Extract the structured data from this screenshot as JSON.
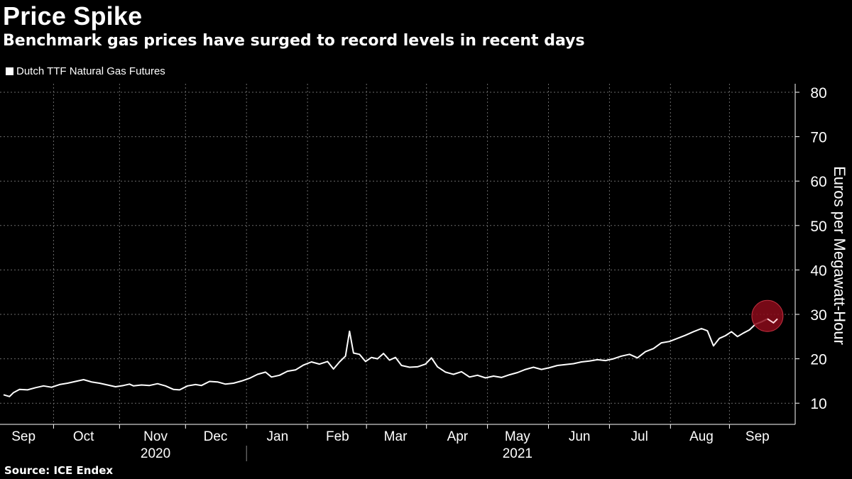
{
  "header": {
    "title": "Price Spike",
    "subtitle": "Benchmark gas prices have surged to record levels in recent days"
  },
  "legend": {
    "label": "Dutch TTF Natural Gas Futures"
  },
  "source": "Source: ICE Endex",
  "colors": {
    "background": "#000000",
    "line": "#ffffff",
    "grid": "#6b6b6b",
    "highlight": "#8b0a1a"
  },
  "chart_data": {
    "type": "line",
    "title": "Price Spike",
    "subtitle": "Benchmark gas prices have surged to record levels in recent days",
    "ylabel": "Euros per Megawatt-Hour",
    "ylim": [
      5,
      82
    ],
    "y_ticks": [
      10,
      20,
      30,
      40,
      50,
      60,
      70,
      80
    ],
    "x_range": [
      "2020-08-31",
      "2021-09-22"
    ],
    "x_month_labels": [
      {
        "label": "Sep",
        "date": "2020-09-10"
      },
      {
        "label": "Oct",
        "date": "2020-10-10"
      },
      {
        "label": "Nov",
        "date": "2020-11-15"
      },
      {
        "label": "Dec",
        "date": "2020-12-15"
      },
      {
        "label": "Jan",
        "date": "2021-01-15"
      },
      {
        "label": "Feb",
        "date": "2021-02-14"
      },
      {
        "label": "Mar",
        "date": "2021-03-15"
      },
      {
        "label": "Apr",
        "date": "2021-04-15"
      },
      {
        "label": "May",
        "date": "2021-05-15"
      },
      {
        "label": "Jun",
        "date": "2021-06-15"
      },
      {
        "label": "Jul",
        "date": "2021-07-15"
      },
      {
        "label": "Aug",
        "date": "2021-08-15"
      },
      {
        "label": "Sep",
        "date": "2021-09-12"
      }
    ],
    "x_year_labels": [
      {
        "label": "2020",
        "date": "2020-11-15"
      },
      {
        "label": "2021",
        "date": "2021-05-15"
      }
    ],
    "gridlines": true,
    "legend_position": "top-left",
    "series": [
      {
        "name": "Dutch TTF Natural Gas Futures",
        "points": [
          [
            "2020-08-31",
            11.9
          ],
          [
            "2020-09-03",
            11.5
          ],
          [
            "2020-09-05",
            12.4
          ],
          [
            "2020-09-08",
            13.1
          ],
          [
            "2020-09-12",
            13.0
          ],
          [
            "2020-09-16",
            13.5
          ],
          [
            "2020-09-20",
            13.9
          ],
          [
            "2020-09-24",
            13.6
          ],
          [
            "2020-09-28",
            14.2
          ],
          [
            "2020-10-02",
            14.5
          ],
          [
            "2020-10-06",
            14.9
          ],
          [
            "2020-10-10",
            15.3
          ],
          [
            "2020-10-14",
            14.8
          ],
          [
            "2020-10-18",
            14.5
          ],
          [
            "2020-10-22",
            14.1
          ],
          [
            "2020-10-26",
            13.7
          ],
          [
            "2020-10-30",
            14.0
          ],
          [
            "2020-11-02",
            14.3
          ],
          [
            "2020-11-04",
            13.9
          ],
          [
            "2020-11-08",
            14.1
          ],
          [
            "2020-11-12",
            14.0
          ],
          [
            "2020-11-16",
            14.4
          ],
          [
            "2020-11-20",
            13.9
          ],
          [
            "2020-11-24",
            13.1
          ],
          [
            "2020-11-27",
            13.0
          ],
          [
            "2020-12-01",
            13.9
          ],
          [
            "2020-12-05",
            14.2
          ],
          [
            "2020-12-08",
            14.0
          ],
          [
            "2020-12-12",
            14.9
          ],
          [
            "2020-12-16",
            14.8
          ],
          [
            "2020-12-20",
            14.3
          ],
          [
            "2020-12-24",
            14.5
          ],
          [
            "2020-12-28",
            15.0
          ],
          [
            "2021-01-01",
            15.6
          ],
          [
            "2021-01-05",
            16.5
          ],
          [
            "2021-01-09",
            17.0
          ],
          [
            "2021-01-12",
            15.9
          ],
          [
            "2021-01-16",
            16.3
          ],
          [
            "2021-01-20",
            17.2
          ],
          [
            "2021-01-24",
            17.5
          ],
          [
            "2021-01-28",
            18.6
          ],
          [
            "2021-02-01",
            19.3
          ],
          [
            "2021-02-05",
            18.8
          ],
          [
            "2021-02-09",
            19.4
          ],
          [
            "2021-02-12",
            17.7
          ],
          [
            "2021-02-15",
            19.3
          ],
          [
            "2021-02-18",
            20.6
          ],
          [
            "2021-02-20",
            26.2
          ],
          [
            "2021-02-22",
            21.3
          ],
          [
            "2021-02-25",
            21.0
          ],
          [
            "2021-02-28",
            19.4
          ],
          [
            "2021-03-03",
            20.3
          ],
          [
            "2021-03-06",
            20.0
          ],
          [
            "2021-03-09",
            21.2
          ],
          [
            "2021-03-12",
            19.7
          ],
          [
            "2021-03-15",
            20.3
          ],
          [
            "2021-03-18",
            18.5
          ],
          [
            "2021-03-22",
            18.1
          ],
          [
            "2021-03-26",
            18.2
          ],
          [
            "2021-03-30",
            18.8
          ],
          [
            "2021-04-02",
            20.2
          ],
          [
            "2021-04-05",
            18.2
          ],
          [
            "2021-04-09",
            17.0
          ],
          [
            "2021-04-13",
            16.5
          ],
          [
            "2021-04-17",
            17.1
          ],
          [
            "2021-04-21",
            15.9
          ],
          [
            "2021-04-25",
            16.3
          ],
          [
            "2021-04-29",
            15.7
          ],
          [
            "2021-05-03",
            16.1
          ],
          [
            "2021-05-07",
            15.8
          ],
          [
            "2021-05-11",
            16.4
          ],
          [
            "2021-05-15",
            16.9
          ],
          [
            "2021-05-19",
            17.6
          ],
          [
            "2021-05-23",
            18.1
          ],
          [
            "2021-05-27",
            17.6
          ],
          [
            "2021-05-31",
            18.0
          ],
          [
            "2021-06-04",
            18.5
          ],
          [
            "2021-06-08",
            18.7
          ],
          [
            "2021-06-12",
            18.9
          ],
          [
            "2021-06-16",
            19.3
          ],
          [
            "2021-06-20",
            19.5
          ],
          [
            "2021-06-24",
            19.8
          ],
          [
            "2021-06-28",
            19.6
          ],
          [
            "2021-07-02",
            20.0
          ],
          [
            "2021-07-06",
            20.6
          ],
          [
            "2021-07-10",
            21.0
          ],
          [
            "2021-07-14",
            20.2
          ],
          [
            "2021-07-18",
            21.6
          ],
          [
            "2021-07-22",
            22.3
          ],
          [
            "2021-07-26",
            23.6
          ],
          [
            "2021-07-30",
            23.9
          ],
          [
            "2021-08-03",
            24.6
          ],
          [
            "2021-08-07",
            25.3
          ],
          [
            "2021-08-11",
            26.1
          ],
          [
            "2021-08-15",
            26.8
          ],
          [
            "2021-08-18",
            26.3
          ],
          [
            "2021-08-21",
            22.9
          ],
          [
            "2021-08-24",
            24.6
          ],
          [
            "2021-08-27",
            25.2
          ],
          [
            "2021-08-30",
            26.1
          ],
          [
            "2021-09-02",
            25.0
          ],
          [
            "2021-09-05",
            25.8
          ],
          [
            "2021-09-08",
            26.5
          ],
          [
            "2021-09-11",
            27.8
          ],
          [
            "2021-09-14",
            28.3
          ],
          [
            "2021-09-17",
            29.0
          ],
          [
            "2021-09-20",
            28.1
          ],
          [
            "2021-09-22",
            29.0
          ]
        ]
      }
    ]
  }
}
